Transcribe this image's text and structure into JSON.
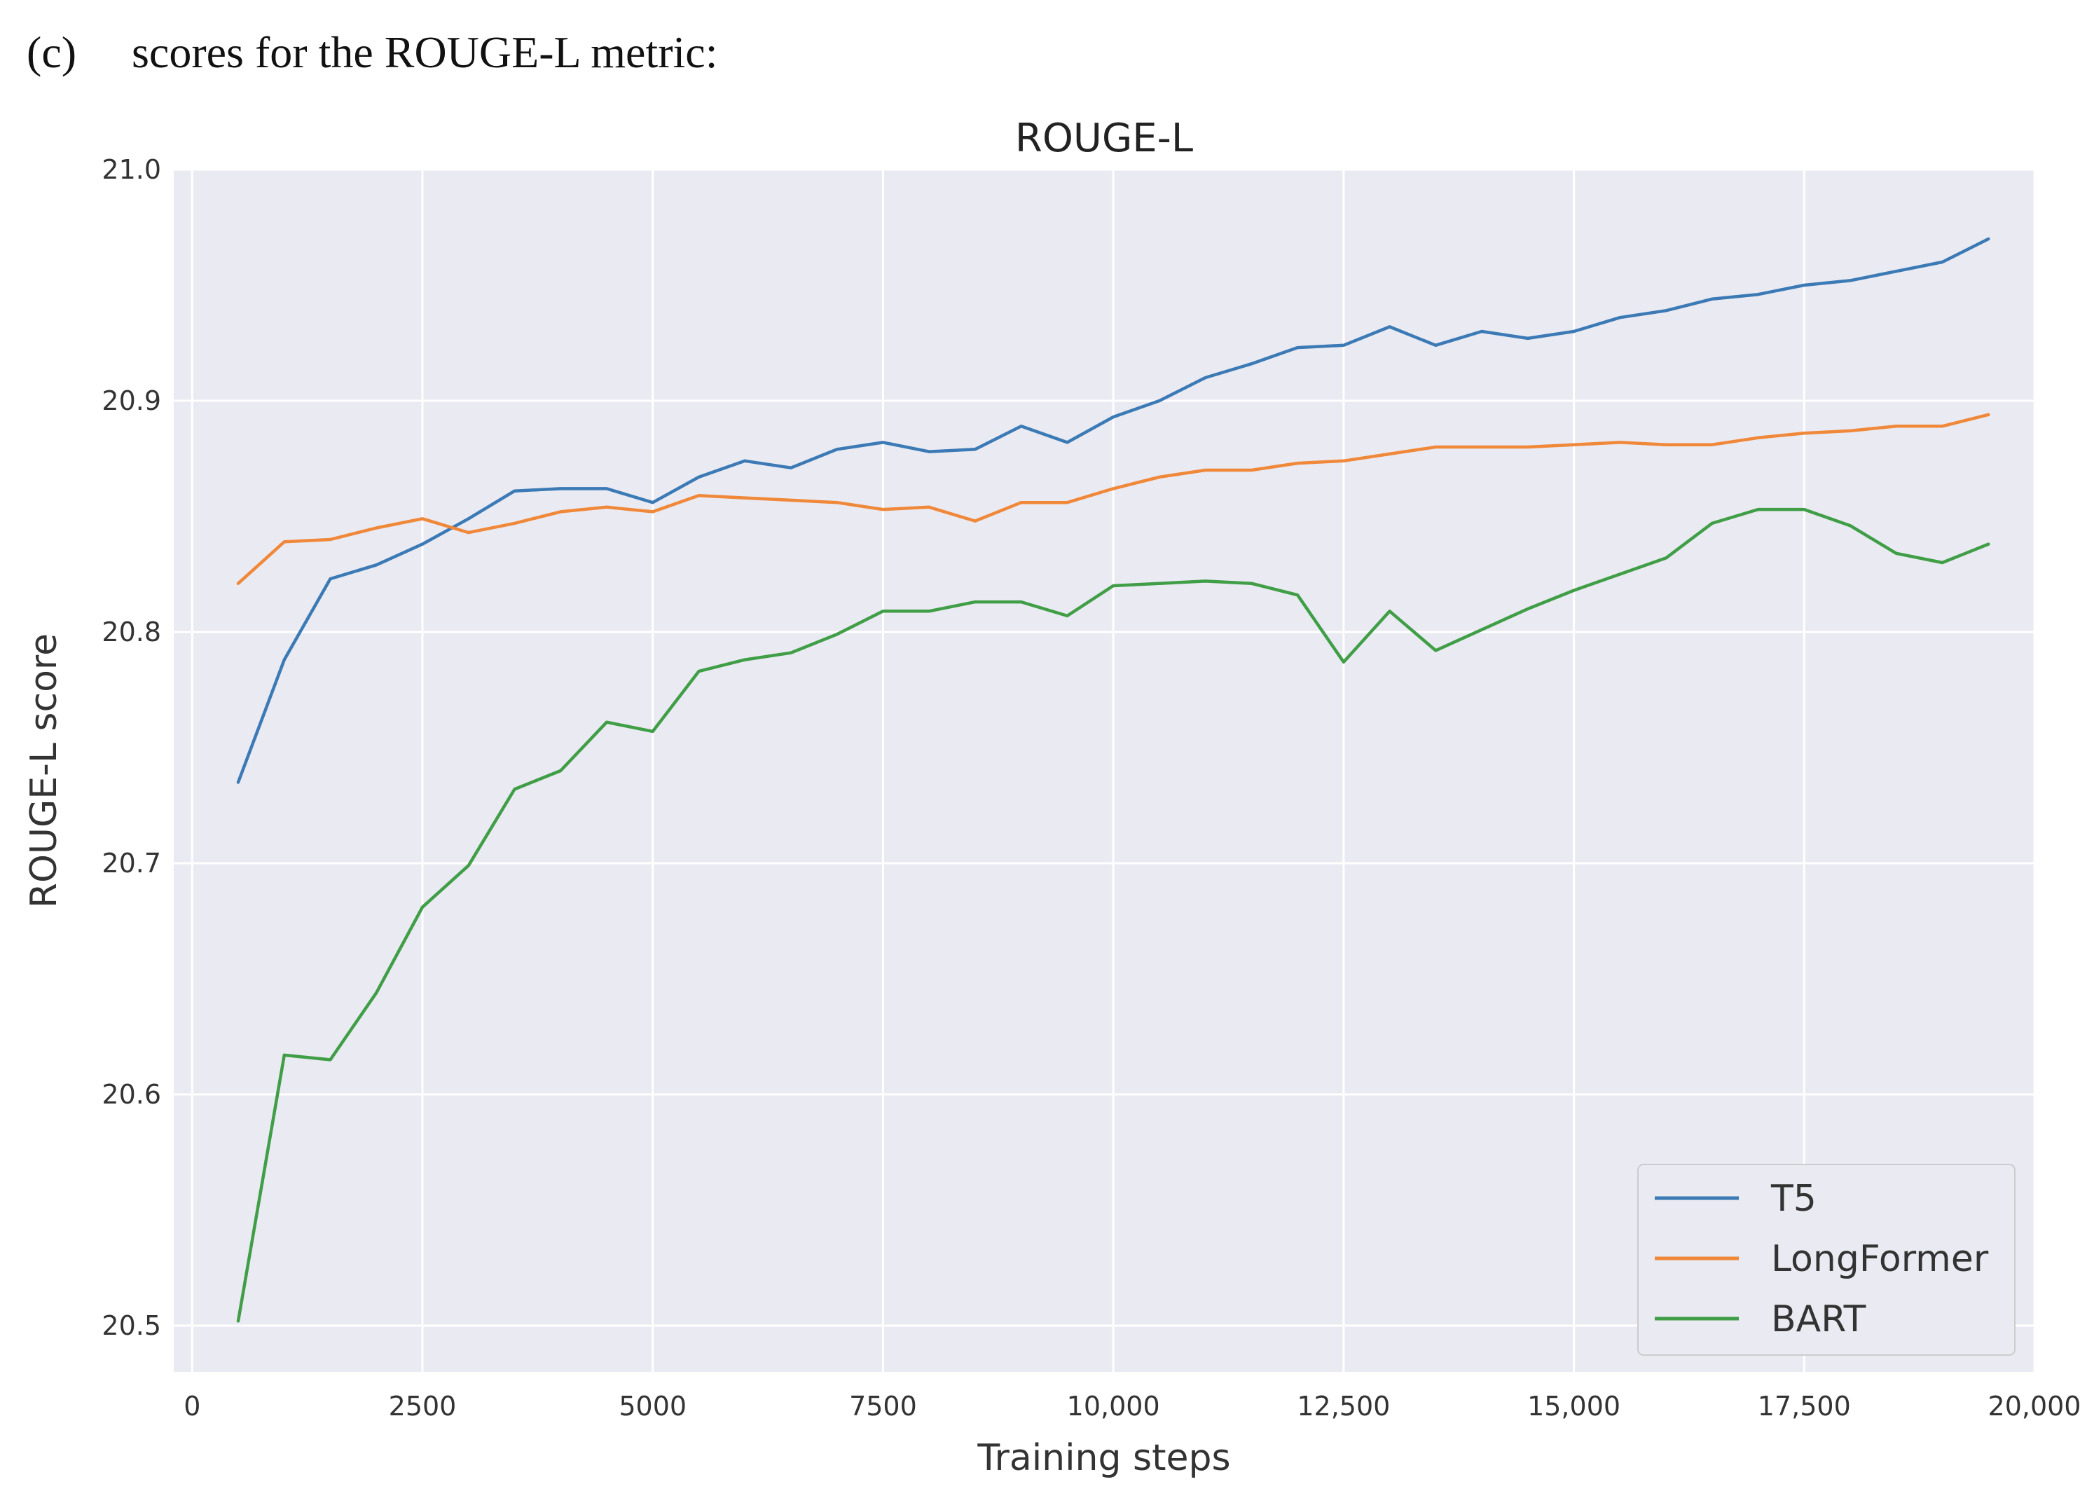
{
  "caption": {
    "label": "(c)",
    "text": "scores for the ROUGE-L metric:"
  },
  "chart_data": {
    "type": "line",
    "title": "ROUGE-L",
    "xlabel": "Training steps",
    "ylabel": "ROUGE-L score",
    "xlim": [
      -200,
      20000
    ],
    "ylim": [
      20.48,
      21.0
    ],
    "xticks": [
      0,
      2500,
      5000,
      7500,
      10000,
      12500,
      15000,
      17500,
      20000
    ],
    "xtick_labels": [
      "0",
      "2500",
      "5000",
      "7500",
      "10,000",
      "12,500",
      "15,000",
      "17,500",
      "20,000"
    ],
    "yticks": [
      20.5,
      20.6,
      20.7,
      20.8,
      20.9,
      21.0
    ],
    "ytick_labels": [
      "20.5",
      "20.6",
      "20.7",
      "20.8",
      "20.9",
      "21.0"
    ],
    "grid": true,
    "legend_position": "bottom-right",
    "x": [
      500,
      1000,
      1500,
      2000,
      2500,
      3000,
      3500,
      4000,
      4500,
      5000,
      5500,
      6000,
      6500,
      7000,
      7500,
      8000,
      8500,
      9000,
      9500,
      10000,
      10500,
      11000,
      11500,
      12000,
      12500,
      13000,
      13500,
      14000,
      14500,
      15000,
      15500,
      16000,
      16500,
      17000,
      17500,
      18000,
      18500,
      19000,
      19500
    ],
    "series": [
      {
        "name": "T5",
        "color": "#3b7ab5",
        "values": [
          20.735,
          20.788,
          20.823,
          20.829,
          20.838,
          20.849,
          20.861,
          20.862,
          20.862,
          20.856,
          20.867,
          20.874,
          20.871,
          20.879,
          20.882,
          20.878,
          20.879,
          20.889,
          20.882,
          20.893,
          20.9,
          20.91,
          20.916,
          20.923,
          20.924,
          20.932,
          20.924,
          20.93,
          20.927,
          20.93,
          20.936,
          20.939,
          20.944,
          20.946,
          20.95,
          20.952,
          20.956,
          20.96,
          20.97
        ]
      },
      {
        "name": "LongFormer",
        "color": "#f0883a",
        "values": [
          20.821,
          20.839,
          20.84,
          20.845,
          20.849,
          20.843,
          20.847,
          20.852,
          20.854,
          20.852,
          20.859,
          20.858,
          20.857,
          20.856,
          20.853,
          20.854,
          20.848,
          20.856,
          20.856,
          20.862,
          20.867,
          20.87,
          20.87,
          20.873,
          20.874,
          20.877,
          20.88,
          20.88,
          20.88,
          20.881,
          20.882,
          20.881,
          20.881,
          20.884,
          20.886,
          20.887,
          20.889,
          20.889,
          20.894
        ]
      },
      {
        "name": "BART",
        "color": "#3f9e46",
        "values": [
          20.502,
          20.617,
          20.615,
          20.644,
          20.681,
          20.699,
          20.732,
          20.74,
          20.761,
          20.757,
          20.783,
          20.788,
          20.791,
          20.799,
          20.809,
          20.809,
          20.813,
          20.813,
          20.807,
          20.82,
          20.821,
          20.822,
          20.821,
          20.816,
          20.787,
          20.809,
          20.792,
          20.801,
          20.81,
          20.818,
          20.825,
          20.832,
          20.847,
          20.853,
          20.853,
          20.846,
          20.834,
          20.83,
          20.838
        ]
      }
    ]
  }
}
